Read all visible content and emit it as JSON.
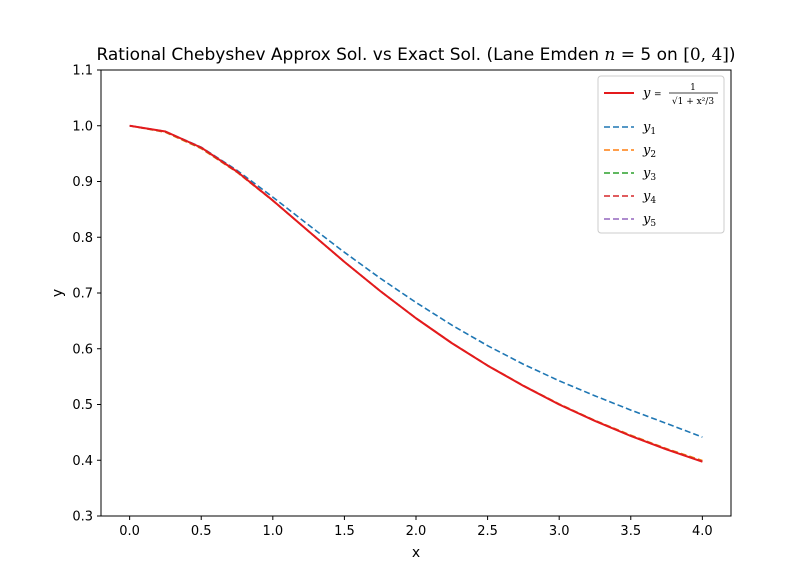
{
  "chart_data": {
    "type": "line",
    "title": "Rational Chebyshev Approx Sol. vs Exact Sol. (Lane Emden n = 5 on [0, 4])",
    "title_parts": {
      "pre": "Rational Chebyshev Approx Sol. vs Exact Sol. (Lane Emden ",
      "n": "n",
      "eq": " = 5 on ",
      "interval": "[0, 4]",
      "post": ")"
    },
    "xlabel": "x",
    "ylabel": "y",
    "xlim": [
      -0.2,
      4.2
    ],
    "ylim": [
      0.3,
      1.1
    ],
    "xticks": [
      "0.0",
      "0.5",
      "1.0",
      "1.5",
      "2.0",
      "2.5",
      "3.0",
      "3.5",
      "4.0"
    ],
    "yticks": [
      "0.3",
      "0.4",
      "0.5",
      "0.6",
      "0.7",
      "0.8",
      "0.9",
      "1.0",
      "1.1"
    ],
    "grid": false,
    "legend_position": "upper right",
    "x": [
      0.0,
      0.25,
      0.5,
      0.75,
      1.0,
      1.25,
      1.5,
      1.75,
      2.0,
      2.25,
      2.5,
      2.75,
      3.0,
      3.25,
      3.5,
      3.75,
      4.0
    ],
    "series": [
      {
        "name": "y = 1/√(1 + x²/3)",
        "legend": {
          "y": "y",
          "eq": "=",
          "num": "1",
          "den": "√1 + x²/3"
        },
        "color": "#e41a1c",
        "style": "solid",
        "values": [
          1.0,
          0.9897,
          0.9608,
          0.9177,
          0.866,
          0.8108,
          0.7559,
          0.7036,
          0.6547,
          0.6101,
          0.5698,
          0.5335,
          0.5,
          0.4705,
          0.4435,
          0.4193,
          0.3974
        ]
      },
      {
        "name": "y1",
        "legend": {
          "base": "y",
          "sub": "1"
        },
        "color": "#1f77b4",
        "style": "dashed",
        "values": [
          1.0,
          0.9897,
          0.9615,
          0.92,
          0.872,
          0.822,
          0.773,
          0.7265,
          0.683,
          0.6425,
          0.6055,
          0.5722,
          0.5425,
          0.5155,
          0.49,
          0.466,
          0.4415
        ]
      },
      {
        "name": "y2",
        "legend": {
          "base": "y",
          "sub": "2"
        },
        "color": "#ff7f0e",
        "style": "dashed",
        "values": [
          1.0,
          0.9882,
          0.959,
          0.9165,
          0.8655,
          0.8105,
          0.7558,
          0.7037,
          0.655,
          0.6105,
          0.5702,
          0.534,
          0.501,
          0.4715,
          0.445,
          0.4208,
          0.3995
        ]
      },
      {
        "name": "y3",
        "legend": {
          "base": "y",
          "sub": "3"
        },
        "color": "#2ca02c",
        "style": "dashed",
        "values": [
          1.0,
          0.989,
          0.96,
          0.9172,
          0.8658,
          0.8107,
          0.7558,
          0.7036,
          0.6548,
          0.6102,
          0.5699,
          0.5337,
          0.5003,
          0.4708,
          0.444,
          0.4198,
          0.398
        ]
      },
      {
        "name": "y4",
        "legend": {
          "base": "y",
          "sub": "4"
        },
        "color": "#d62728",
        "style": "dashed",
        "values": [
          1.0,
          0.9895,
          0.9605,
          0.9175,
          0.866,
          0.8108,
          0.7559,
          0.7036,
          0.6547,
          0.6101,
          0.5698,
          0.5336,
          0.5001,
          0.4706,
          0.4437,
          0.4195,
          0.3977
        ]
      },
      {
        "name": "y5",
        "legend": {
          "base": "y",
          "sub": "5"
        },
        "color": "#9467bd",
        "style": "dashed",
        "values": [
          1.0,
          0.9896,
          0.9607,
          0.9176,
          0.866,
          0.8108,
          0.7559,
          0.7036,
          0.6547,
          0.6101,
          0.5698,
          0.5335,
          0.5,
          0.4705,
          0.4436,
          0.4194,
          0.3975
        ]
      }
    ]
  }
}
